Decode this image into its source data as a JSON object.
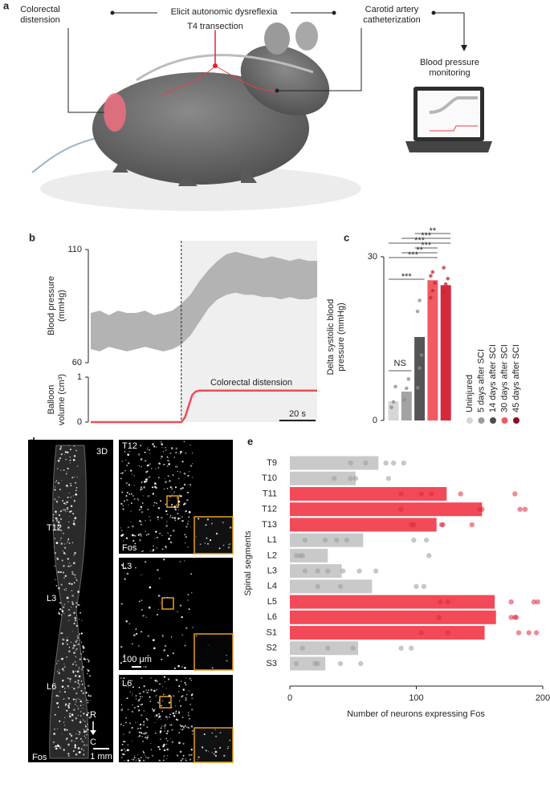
{
  "panel_labels": [
    "a",
    "b",
    "c",
    "d",
    "e"
  ],
  "panel_a": {
    "colorectal": [
      "Colorectal",
      "distension"
    ],
    "elicit": "Elicit autonomic dysreflexia",
    "transection": "T4 transection",
    "carotid": [
      "Carotid artery",
      "catheterization"
    ],
    "monitoring": [
      "Blood pressure",
      "monitoring"
    ]
  },
  "panel_d": {
    "whole": {
      "view": "3D",
      "levels": [
        "T12",
        "L3",
        "L6"
      ],
      "orientation": [
        "R",
        "C"
      ],
      "stain": "Fos",
      "scale": "1 mm"
    },
    "tiles": [
      {
        "level": "T12",
        "stain": "Fos"
      },
      {
        "level": "L3",
        "scale": "100 μm"
      },
      {
        "level": "L6"
      }
    ]
  },
  "chart_data": [
    {
      "type": "area",
      "ylabel": [
        "Blood pressure",
        "(mmHg)"
      ],
      "color": "#b3b3b3",
      "x": [
        0,
        5,
        10,
        15,
        20,
        25,
        30,
        35,
        40,
        45,
        50,
        55,
        60,
        65,
        70,
        75,
        80,
        85,
        90,
        95,
        100,
        105,
        110,
        115,
        120,
        125
      ],
      "low": [
        66,
        65,
        67,
        66,
        65,
        66,
        67,
        66,
        65,
        66,
        68,
        72,
        78,
        84,
        88,
        90,
        91,
        90,
        90,
        89,
        89,
        88,
        89,
        88,
        88,
        89
      ],
      "high": [
        82,
        83,
        81,
        83,
        82,
        82,
        83,
        81,
        82,
        83,
        86,
        90,
        96,
        101,
        105,
        108,
        109,
        108,
        107,
        106,
        107,
        106,
        105,
        106,
        105,
        105
      ],
      "xlim": [
        0,
        125
      ],
      "ylim": [
        60,
        110
      ],
      "yticks": [
        60,
        110
      ],
      "event_x": 50
    },
    {
      "type": "line",
      "ylabel": [
        "Balloon",
        "volume (cm³)"
      ],
      "color": "#ef4b55",
      "x": [
        0,
        50,
        52,
        54,
        56,
        58,
        60,
        125
      ],
      "values": [
        0,
        0,
        0.1,
        0.35,
        0.6,
        0.68,
        0.7,
        0.7
      ],
      "xlim": [
        0,
        125
      ],
      "ylim": [
        0,
        1
      ],
      "yticks": [
        0,
        1
      ],
      "annotation": "Colorectal distension",
      "scale_bar": {
        "value": 20,
        "label": "20 s"
      }
    },
    {
      "type": "bar",
      "ylabel": [
        "Delta systolic blood",
        "pressure (mmHg)"
      ],
      "categories": [
        "Uninjured",
        "5 days after SCI",
        "14 days after SCI",
        "30 days after SCI",
        "45 days after SCI"
      ],
      "values": [
        3.5,
        5.3,
        15.3,
        25.7,
        24.8
      ],
      "points": [
        [
          2.4,
          3.4,
          6.2
        ],
        [
          3.8,
          5.9,
          7.6
        ],
        [
          6,
          9.6,
          12,
          20,
          22
        ],
        [
          22.5,
          23.8,
          25.2,
          26.5,
          27.2
        ],
        [
          23.5,
          25,
          26,
          28
        ]
      ],
      "colors": [
        "#d6d6d6",
        "#a3a3a3",
        "#555555",
        "#f25a62",
        "#d42a3c"
      ],
      "legend_colors": [
        "#d6d6d6",
        "#9b9b9b",
        "#4d4d4d",
        "#f25a62",
        "#8b0d26"
      ],
      "ylim": [
        0,
        30
      ],
      "yticks": [
        0,
        30
      ],
      "annotations": [
        "**",
        "***",
        "***",
        "***",
        "**",
        "***",
        "***",
        "NS"
      ]
    },
    {
      "type": "hbar",
      "ylabel": "Spinal segments",
      "xlabel": "Number of neurons expressing Fos",
      "categories": [
        "T9",
        "T10",
        "T11",
        "T12",
        "T13",
        "L1",
        "L2",
        "L3",
        "L4",
        "L5",
        "L6",
        "S1",
        "S2",
        "S3"
      ],
      "values": [
        70,
        52,
        124,
        152,
        116,
        58,
        30,
        41,
        65,
        162,
        163,
        154,
        54,
        28
      ],
      "colors": [
        "#c9c9c9",
        "#c9c9c9",
        "#f24a58",
        "#f24a58",
        "#f24a58",
        "#c9c9c9",
        "#c9c9c9",
        "#c9c9c9",
        "#c9c9c9",
        "#f24a58",
        "#f24a58",
        "#f24a58",
        "#c9c9c9",
        "#c9c9c9"
      ],
      "points": [
        [
          48,
          60,
          76,
          82,
          90
        ],
        [
          35,
          48,
          52,
          78
        ],
        [
          88,
          104,
          112,
          135,
          178
        ],
        [
          88,
          150,
          152,
          182,
          186
        ],
        [
          96,
          98,
          120,
          121,
          144
        ],
        [
          12,
          28,
          37,
          45,
          98,
          108
        ],
        [
          5,
          8,
          10,
          110
        ],
        [
          12,
          22,
          30,
          42,
          55,
          68
        ],
        [
          22,
          40,
          100,
          106
        ],
        [
          119,
          125,
          175,
          193,
          196
        ],
        [
          118,
          175,
          178,
          179
        ],
        [
          104,
          125,
          181,
          189,
          195
        ],
        [
          10,
          30,
          50,
          88,
          96
        ],
        [
          5,
          20,
          22,
          40,
          56
        ]
      ],
      "xlim": [
        0,
        200
      ],
      "xticks": [
        0,
        100,
        200
      ]
    }
  ]
}
